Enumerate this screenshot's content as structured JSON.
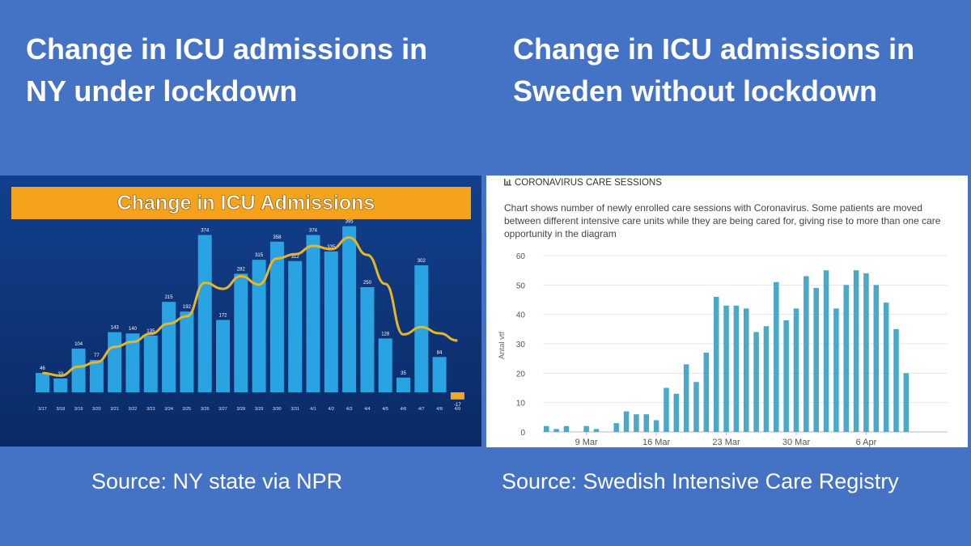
{
  "headings": {
    "left": "Change in ICU admissions in NY under lockdown",
    "right": "Change in ICU admissions in Sweden without lockdown"
  },
  "sources": {
    "left": "Source: NY state via NPR",
    "right": "Source: Swedish Intensive Care Registry"
  },
  "colors": {
    "background": "#4472c4",
    "ny_panel_bg": "#0d2f6e",
    "ny_bar": "#29a3e2",
    "ny_negative_bar": "#f5a623",
    "ny_trend_line": "#e8b622",
    "ny_banner": "#f5a21c",
    "se_bar": "#4aa8c8"
  },
  "chart_data": [
    {
      "type": "bar",
      "title": "Change in ICU Admissions",
      "categories": [
        "3/17",
        "3/18",
        "3/19",
        "3/20",
        "3/21",
        "3/22",
        "3/23",
        "3/24",
        "3/25",
        "3/26",
        "3/27",
        "3/28",
        "3/29",
        "3/30",
        "3/31",
        "4/1",
        "4/2",
        "4/3",
        "4/4",
        "4/5",
        "4/6",
        "4/7",
        "4/8",
        "4/9"
      ],
      "values": [
        46,
        33,
        104,
        77,
        143,
        140,
        135,
        215,
        192,
        374,
        172,
        282,
        315,
        358,
        312,
        374,
        335,
        395,
        250,
        128,
        35,
        302,
        84,
        -17
      ],
      "trend_line": true,
      "grid": false,
      "legend": "none"
    },
    {
      "type": "bar",
      "title": "CORONAVIRUS CARE SESSIONS",
      "subtitle": "Chart shows number of newly enrolled care sessions with Coronavirus. Some patients are moved between different intensive care units while they are being cared for, giving rise to more than one care opportunity in the diagram",
      "ylabel": "Antal vtf",
      "ylim": [
        0,
        60
      ],
      "yticks": [
        0,
        10,
        20,
        30,
        40,
        50,
        60
      ],
      "xtick_labels": [
        {
          "label": "9 Mar",
          "index": 4
        },
        {
          "label": "16 Mar",
          "index": 11
        },
        {
          "label": "23 Mar",
          "index": 18
        },
        {
          "label": "30 Mar",
          "index": 25
        },
        {
          "label": "6 Apr",
          "index": 32
        }
      ],
      "values": [
        2,
        1,
        2,
        0,
        2,
        1,
        0,
        3,
        7,
        6,
        6,
        4,
        15,
        13,
        23,
        17,
        27,
        46,
        43,
        43,
        42,
        34,
        36,
        51,
        38,
        42,
        53,
        49,
        55,
        42,
        50,
        55,
        54,
        50,
        44,
        35,
        20
      ],
      "grid": true,
      "legend": "none"
    }
  ]
}
